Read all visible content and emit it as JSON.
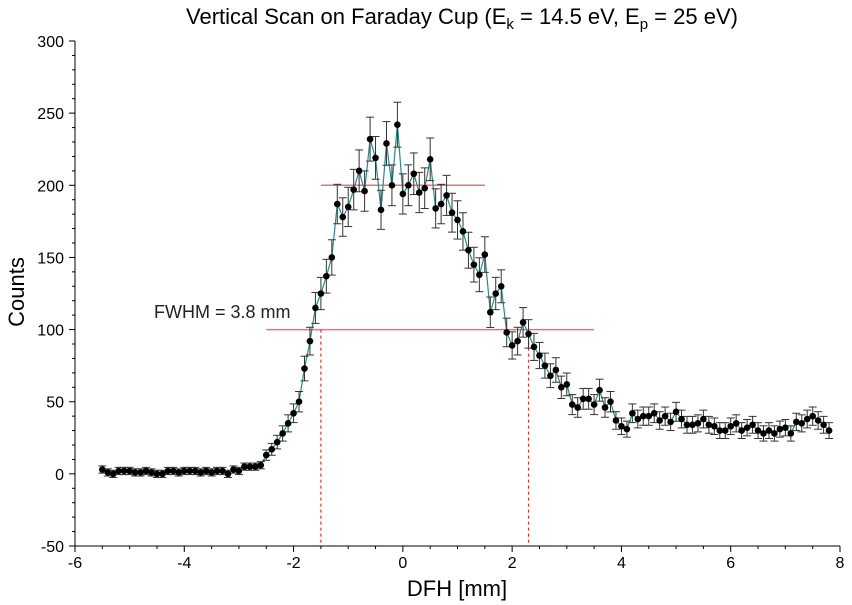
{
  "chart_data": {
    "type": "scatter",
    "title": {
      "main": "Vertical Scan on Faraday Cup (E",
      "ek_sub": "k",
      "mid": " = 14.5 eV, E",
      "ep_sub": "p",
      "tail": " = 25 eV)"
    },
    "xlabel": "DFH [mm]",
    "ylabel": "Counts",
    "xlim": [
      -6,
      8
    ],
    "ylim": [
      -50,
      300
    ],
    "xticks": [
      -6,
      -4,
      -2,
      0,
      2,
      4,
      6,
      8
    ],
    "yticks": [
      -50,
      0,
      50,
      100,
      150,
      200,
      250,
      300
    ],
    "grid": false,
    "annotation": "FWHM = 3.8 mm",
    "colors": {
      "points": "#000000",
      "line": "#2a8a8a",
      "error_bars": "#333333",
      "fwhm_lines": "#f07070",
      "fwhm_drop_lines": "#e03030"
    },
    "reference_lines": {
      "max_level": {
        "y": 200,
        "x_from": -1.5,
        "x_to": 1.5
      },
      "half_level": {
        "y": 100,
        "x_from": -2.5,
        "x_to": 3.5
      },
      "fwhm_edges": [
        -1.5,
        2.3
      ]
    },
    "series": [
      {
        "x": [
          -5.5,
          -5.4,
          -5.3,
          -5.2,
          -5.1,
          -5.0,
          -4.9,
          -4.8,
          -4.7,
          -4.6,
          -4.5,
          -4.4,
          -4.3,
          -4.2,
          -4.1,
          -4.0,
          -3.9,
          -3.8,
          -3.7,
          -3.6,
          -3.5,
          -3.4,
          -3.3,
          -3.2,
          -3.1,
          -3.0,
          -2.9,
          -2.8,
          -2.7,
          -2.6,
          -2.5,
          -2.4,
          -2.3,
          -2.2,
          -2.1,
          -2.0,
          -1.9,
          -1.8,
          -1.7,
          -1.6,
          -1.5,
          -1.4,
          -1.3,
          -1.2,
          -1.1,
          -1.0,
          -0.9,
          -0.8,
          -0.7,
          -0.6,
          -0.5,
          -0.4,
          -0.3,
          -0.2,
          -0.1,
          0.0,
          0.1,
          0.2,
          0.3,
          0.4,
          0.5,
          0.6,
          0.7,
          0.8,
          0.9,
          1.0,
          1.1,
          1.2,
          1.3,
          1.4,
          1.5,
          1.6,
          1.7,
          1.8,
          1.9,
          2.0,
          2.1,
          2.2,
          2.3,
          2.4,
          2.5,
          2.6,
          2.7,
          2.8,
          2.9,
          3.0,
          3.1,
          3.2,
          3.3,
          3.4,
          3.5,
          3.6,
          3.7,
          3.8,
          3.9,
          4.0,
          4.1,
          4.2,
          4.3,
          4.4,
          4.5,
          4.6,
          4.7,
          4.8,
          4.9,
          5.0,
          5.1,
          5.2,
          5.3,
          5.4,
          5.5,
          5.6,
          5.7,
          5.8,
          5.9,
          6.0,
          6.1,
          6.2,
          6.3,
          6.4,
          6.5,
          6.6,
          6.7,
          6.8,
          6.9,
          7.0,
          7.1,
          7.2,
          7.3,
          7.4,
          7.5,
          7.6,
          7.7,
          7.8
        ],
        "y": [
          3,
          1,
          0,
          2,
          2,
          2,
          1,
          1,
          2,
          1,
          0,
          0,
          2,
          2,
          1,
          2,
          2,
          2,
          1,
          2,
          1,
          2,
          2,
          0,
          3,
          2,
          5,
          5,
          5,
          6,
          13,
          17,
          22,
          28,
          35,
          42,
          50,
          73,
          92,
          115,
          125,
          137,
          150,
          187,
          178,
          185,
          197,
          210,
          196,
          232,
          219,
          183,
          229,
          200,
          242,
          194,
          200,
          208,
          195,
          198,
          218,
          184,
          187,
          193,
          181,
          176,
          168,
          155,
          145,
          138,
          152,
          112,
          125,
          130,
          98,
          89,
          92,
          105,
          97,
          88,
          82,
          75,
          68,
          72,
          60,
          62,
          48,
          46,
          52,
          52,
          48,
          58,
          46,
          50,
          37,
          33,
          31,
          42,
          38,
          40,
          40,
          42,
          37,
          40,
          36,
          43,
          38,
          34,
          34,
          35,
          38,
          34,
          33,
          30,
          30,
          33,
          35,
          30,
          32,
          34,
          30,
          28,
          30,
          28,
          31,
          32,
          28,
          36,
          35,
          38,
          40,
          37,
          34,
          30
        ]
      }
    ]
  }
}
